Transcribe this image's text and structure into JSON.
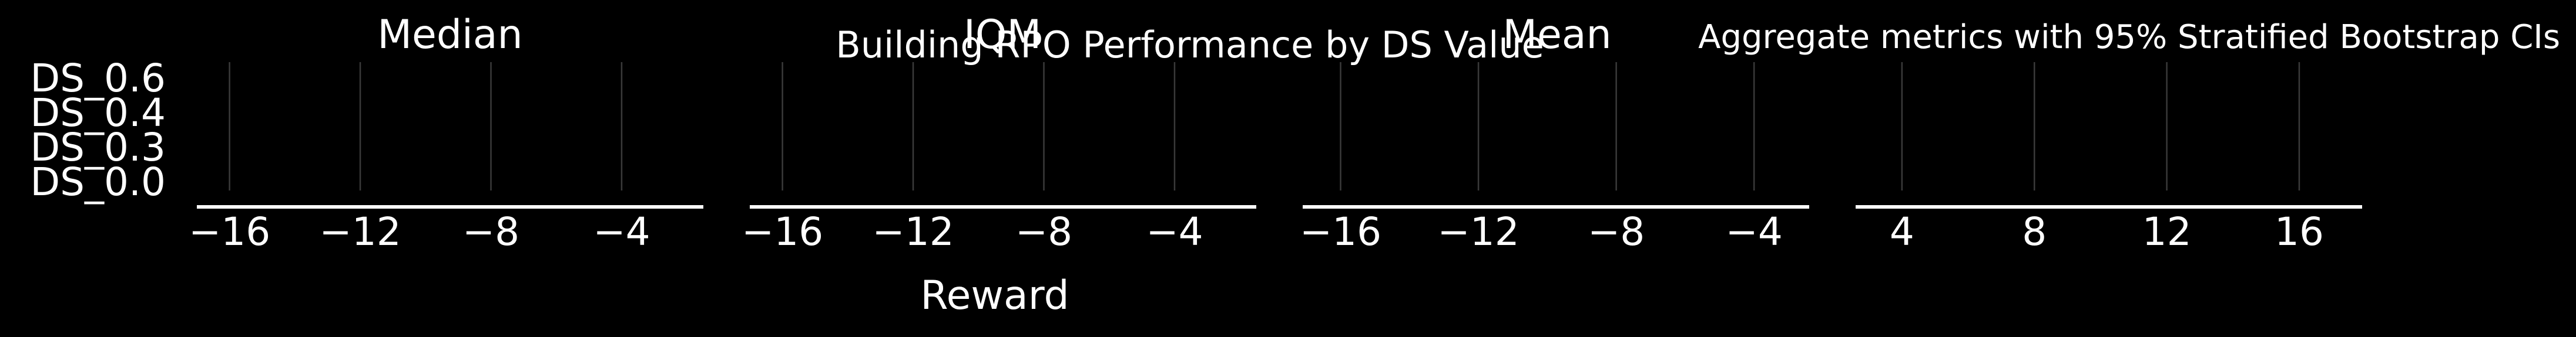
{
  "figure": {
    "suptitle": "Building RPO Performance by DS Value",
    "side_title": "Aggregate metrics with 95% Stratified Bootstrap CIs",
    "xlabel": "Reward"
  },
  "colors": {
    "background": "#000000",
    "text": "#ffffff",
    "axis": "#ffffff",
    "grid": "#3a3a3a"
  },
  "chart_data": [
    {
      "type": "interval",
      "title": "Median",
      "categories": [
        "DS_0.6",
        "DS_0.4",
        "DS_0.3",
        "DS_0.0"
      ],
      "xlim": [
        -17,
        -1.5
      ],
      "xticks": [
        -16,
        -12,
        -8,
        -4
      ],
      "xtick_labels": [
        "−16",
        "−12",
        "−8",
        "−4"
      ],
      "grid": true
    },
    {
      "type": "interval",
      "title": "IQM",
      "categories": [
        "DS_0.6",
        "DS_0.4",
        "DS_0.3",
        "DS_0.0"
      ],
      "xlim": [
        -17,
        -1.5
      ],
      "xticks": [
        -16,
        -12,
        -8,
        -4
      ],
      "xtick_labels": [
        "−16",
        "−12",
        "−8",
        "−4"
      ],
      "grid": true
    },
    {
      "type": "interval",
      "title": "Mean",
      "categories": [
        "DS_0.6",
        "DS_0.4",
        "DS_0.3",
        "DS_0.0"
      ],
      "xlim": [
        -17.1,
        -2.4
      ],
      "xticks": [
        -16,
        -12,
        -8,
        -4
      ],
      "xtick_labels": [
        "−16",
        "−12",
        "−8",
        "−4"
      ],
      "grid": true
    },
    {
      "type": "interval",
      "title": "",
      "categories": [
        "DS_0.6",
        "DS_0.4",
        "DS_0.3",
        "DS_0.0"
      ],
      "xlim": [
        2.6,
        17.9
      ],
      "xticks": [
        4,
        8,
        12,
        16
      ],
      "xtick_labels": [
        "4",
        "8",
        "12",
        "16"
      ],
      "grid": true
    }
  ]
}
